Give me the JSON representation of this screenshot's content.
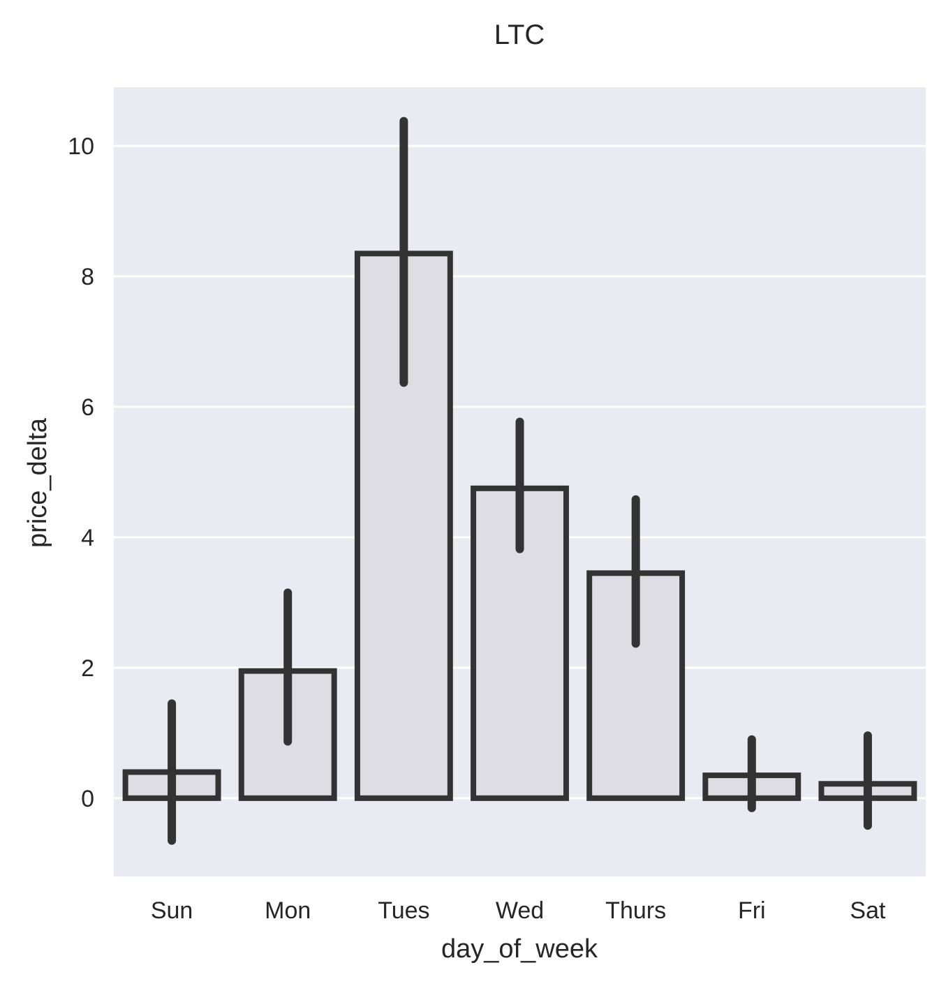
{
  "chart_data": {
    "type": "bar",
    "title": "LTC",
    "xlabel": "day_of_week",
    "ylabel": "price_delta",
    "categories": [
      "Sun",
      "Mon",
      "Tues",
      "Wed",
      "Thurs",
      "Fri",
      "Sat"
    ],
    "values": [
      0.4,
      1.95,
      8.35,
      4.75,
      3.45,
      0.35,
      0.22
    ],
    "error_low": [
      -0.65,
      0.87,
      6.37,
      3.82,
      2.37,
      -0.15,
      -0.42
    ],
    "error_high": [
      1.45,
      3.15,
      10.38,
      5.77,
      4.58,
      0.9,
      0.96
    ],
    "yticks": [
      0,
      2,
      4,
      6,
      8,
      10
    ],
    "ytick_labels": [
      "0",
      "2",
      "4",
      "6",
      "8",
      "10"
    ],
    "ylim": [
      -1.2,
      10.9
    ],
    "grid": true,
    "colors": {
      "plot_background": "#eaeaf2",
      "bar_fill": "#dedde3",
      "bar_edge": "#333333",
      "error_bar": "#333333",
      "grid": "#ffffff",
      "text": "#262626"
    }
  }
}
